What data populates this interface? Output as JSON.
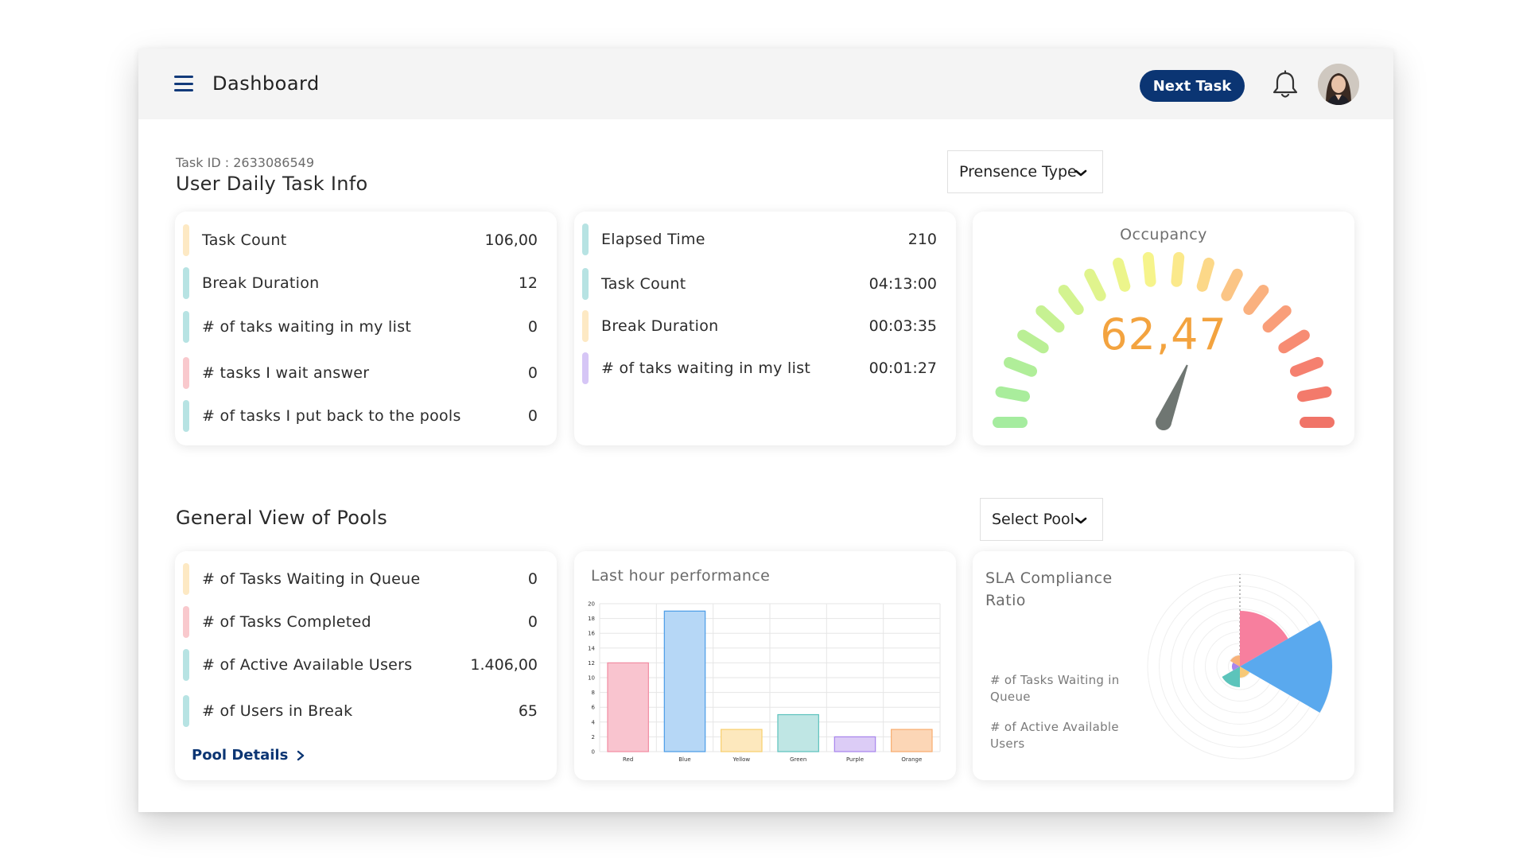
{
  "header": {
    "title": "Dashboard",
    "next_task_label": "Next Task"
  },
  "task_info": {
    "task_id": "Task ID : 2633086549",
    "title": "User Daily Task Info",
    "presence_dropdown": "Prensence Type"
  },
  "card1": {
    "rows": [
      {
        "label": "Task Count",
        "value": "106,00",
        "color": "#fde9c4"
      },
      {
        "label": "Break Duration",
        "value": "12",
        "color": "#b7e3e3"
      },
      {
        "label": "# of taks waiting in my list",
        "value": "0",
        "color": "#b7e3e3"
      },
      {
        "label": "# tasks I wait answer",
        "value": "0",
        "color": "#f9c9cd"
      },
      {
        "label": "# of tasks I put back to the pools",
        "value": "0",
        "color": "#b7e3e3"
      }
    ]
  },
  "card2": {
    "rows": [
      {
        "label": "Elapsed Time",
        "value": "210",
        "color": "#b7e3e3"
      },
      {
        "label": "Task Count",
        "value": "04:13:00",
        "color": "#b7e3e3"
      },
      {
        "label": "Break Duration",
        "value": "00:03:35",
        "color": "#fde9c4"
      },
      {
        "label": "# of taks waiting in my list",
        "value": "00:01:27",
        "color": "#d6c6f6"
      }
    ]
  },
  "occupancy": {
    "title": "Occupancy",
    "value": "62,47"
  },
  "pools": {
    "title": "General View of Pools",
    "select_label": "Select Pool"
  },
  "card4": {
    "rows": [
      {
        "label": "# of Tasks Waiting in Queue",
        "value": "0",
        "color": "#fde9c4"
      },
      {
        "label": "# of Tasks Completed",
        "value": "0",
        "color": "#f9c9cd"
      },
      {
        "label": "# of Active Available Users",
        "value": "1.406,00",
        "color": "#b7e3e3"
      },
      {
        "label": "# of Users in Break",
        "value": "65",
        "color": "#b7e3e3"
      }
    ],
    "link_label": "Pool Details"
  },
  "performance": {
    "title": "Last hour performance"
  },
  "chart_data": {
    "type": "bar",
    "categories": [
      "Red",
      "Blue",
      "Yellow",
      "Green",
      "Purple",
      "Orange"
    ],
    "values": [
      12,
      19,
      3,
      5,
      2,
      3
    ],
    "colors": [
      "#f9c4cf",
      "#b6d7f6",
      "#fde8bd",
      "#bfe6e4",
      "#dcccf6",
      "#fcd6b6"
    ],
    "borders": [
      "#f28ca2",
      "#4a9be6",
      "#f8cf6c",
      "#5cc2bd",
      "#a784ec",
      "#f8ac6e"
    ],
    "yticks": [
      "0",
      "2",
      "4",
      "6",
      "8",
      "10",
      "12",
      "14",
      "16",
      "18",
      "20"
    ],
    "ylim": [
      0,
      20
    ],
    "grid": true
  },
  "sla": {
    "title": "SLA Compliance Ratio",
    "legend": [
      "# of Tasks Waiting in Queue",
      "# of Active Available Users"
    ]
  }
}
